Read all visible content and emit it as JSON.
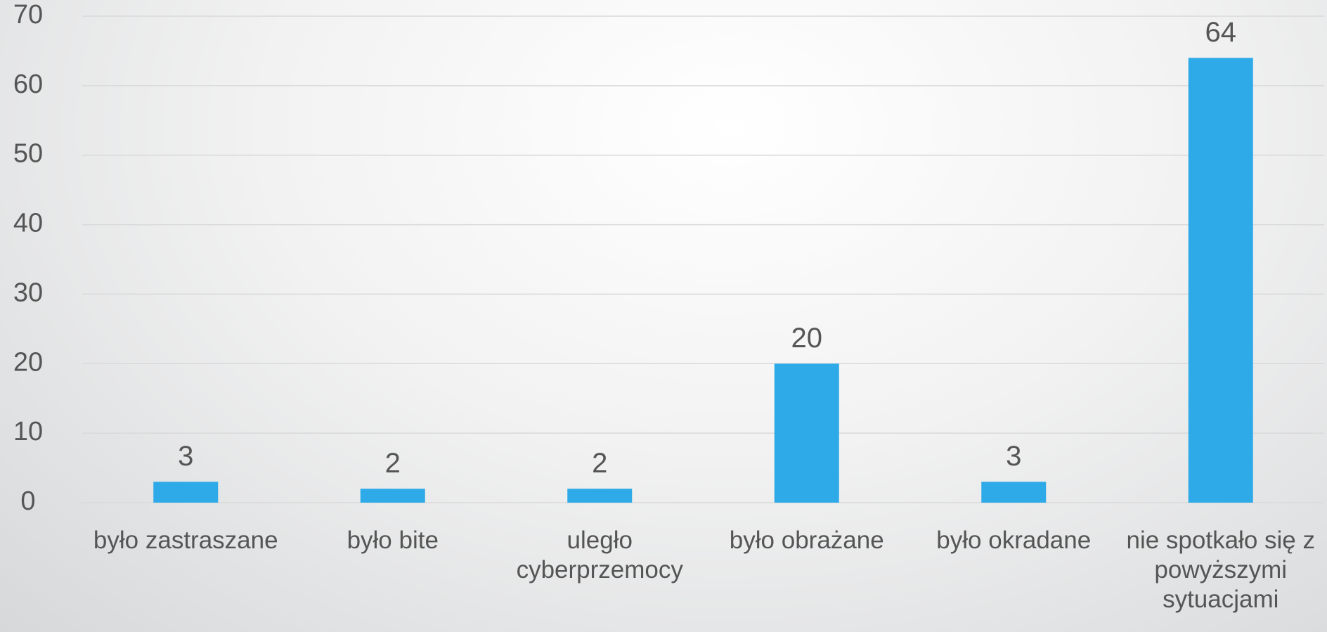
{
  "chart_data": {
    "type": "bar",
    "categories": [
      "było zastraszane",
      "było bite",
      "uległo cyberprzemocy",
      "było obrażane",
      "było okradane",
      "nie spotkało się z powyższymi sytuacjami"
    ],
    "values": [
      3,
      2,
      2,
      20,
      3,
      64
    ],
    "color": "#2eaae8",
    "ylim": [
      0,
      70
    ],
    "yticks": [
      0,
      10,
      20,
      30,
      40,
      50,
      60,
      70
    ],
    "grid": true
  }
}
